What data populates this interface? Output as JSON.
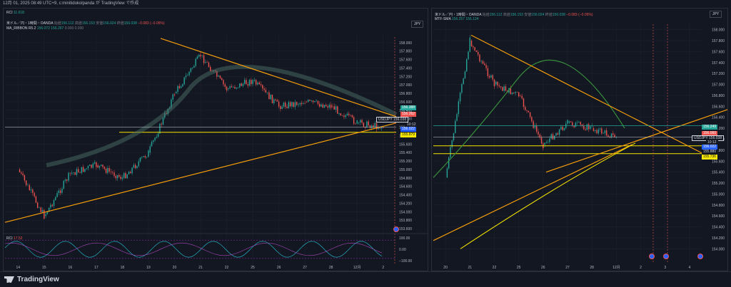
{
  "header": {
    "timestamp": "12月 01, 2025 08:49 UTC+9,",
    "author_note": "c:minitidokolpanda が TradingView で作成"
  },
  "left_chart": {
    "rci_label": "RCI",
    "rci_value": "11.618",
    "title": "米ドル／円・1時間・OANDA",
    "ohlc": {
      "open_label": "始値",
      "open": "156.112",
      "high_label": "高値",
      "high": "156.153",
      "low_label": "安値",
      "low": "156.024",
      "close_label": "終値",
      "close": "156.038",
      "change": "−0.083 (−0.05%)"
    },
    "indicator_name": "MA_RIBBON R5.2",
    "indicator_values": [
      "156.072",
      "156.267",
      "0.000",
      "0.000"
    ],
    "symbol_badge": "JPY",
    "price_axis": [
      "158.000",
      "157.800",
      "157.600",
      "157.400",
      "157.200",
      "157.000",
      "156.800",
      "156.600",
      "156.400",
      "156.200",
      "156.000",
      "155.800",
      "155.600",
      "155.400",
      "155.200",
      "155.000",
      "154.800",
      "154.600",
      "154.400",
      "154.200",
      "154.000",
      "153.800",
      "153.600"
    ],
    "price_tags": {
      "sell": "156.262",
      "usdjpy": "USDJPY",
      "current": "156.038",
      "timer": "10:12",
      "buy": "156.022",
      "level": "155.879"
    },
    "upper_tag": "156.388",
    "x_labels": [
      "14",
      "15",
      "16",
      "17",
      "18",
      "19",
      "20",
      "21",
      "22",
      "25",
      "26",
      "27",
      "28",
      "12月",
      "2"
    ],
    "rci_pane": {
      "label": "RCI",
      "value": "17.52",
      "axis": [
        "100.00",
        "0.00",
        "−100.00"
      ]
    }
  },
  "right_chart": {
    "title": "米ドル／円・1時間・OANDA",
    "ohlc": {
      "open_label": "始値",
      "open": "156.112",
      "high_label": "高値",
      "high": "156.153",
      "low_label": "安値",
      "low": "156.024",
      "close_label": "終値",
      "close": "156.038",
      "change": "−0.083 (−0.05%)"
    },
    "indicator_name": "MTF-SMA",
    "indicator_values": [
      "156.257",
      "156.124"
    ],
    "symbol_badge": "JPY",
    "price_axis": [
      "158.000",
      "157.800",
      "157.600",
      "157.400",
      "157.200",
      "157.000",
      "156.800",
      "156.600",
      "156.400",
      "156.200",
      "156.000",
      "155.800",
      "155.600",
      "155.400",
      "155.200",
      "155.000",
      "154.800",
      "154.600",
      "154.400",
      "154.200",
      "154.000"
    ],
    "price_tags": {
      "green": "156.249",
      "sell": "156.060",
      "usdjpy": "USDJPY",
      "current": "156.038",
      "timer": "10:12",
      "buy": "156.022",
      "level1": "155.880",
      "level2": "155.736"
    },
    "x_labels": [
      "20",
      "21",
      "22",
      "25",
      "26",
      "27",
      "28",
      "12月",
      "2",
      "3",
      "4"
    ]
  },
  "footer": {
    "brand": "TradingView"
  },
  "chart_data": [
    {
      "type": "line",
      "title": "米ドル／円・1時間・OANDA",
      "xlabel": "",
      "ylabel": "",
      "categories": [
        "14",
        "15",
        "16",
        "17",
        "18",
        "19",
        "20",
        "21",
        "22",
        "25",
        "26",
        "27",
        "28",
        "12月",
        "2"
      ],
      "ylim": [
        153.5,
        158.2
      ],
      "series": [
        {
          "name": "",
          "values": [
            155.0,
            153.9,
            154.9,
            155.1,
            154.8,
            155.4,
            156.8,
            157.7,
            156.9,
            157.1,
            156.5,
            156.6,
            156.5,
            156.1,
            156.0
          ]
        }
      ],
      "horizontal_lines": [
        155.879
      ],
      "grid": true
    },
    {
      "type": "line",
      "title": "米ドル／円・1時間・OANDA",
      "xlabel": "",
      "ylabel": "",
      "categories": [
        "20",
        "21",
        "22",
        "25",
        "26",
        "27",
        "28",
        "12月",
        "2",
        "3",
        "4"
      ],
      "ylim": [
        153.9,
        158.1
      ],
      "series": [
        {
          "name": "",
          "values": [
            155.3,
            157.8,
            157.0,
            156.8,
            155.9,
            156.3,
            156.2,
            156.04,
            null,
            null,
            null
          ]
        }
      ],
      "horizontal_lines": [
        155.88,
        155.736
      ],
      "grid": true
    }
  ]
}
